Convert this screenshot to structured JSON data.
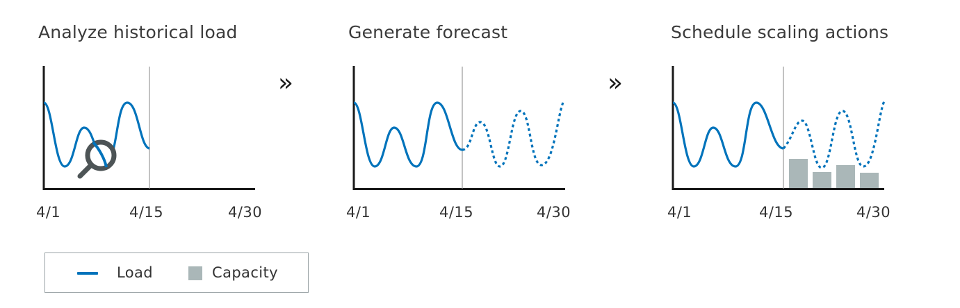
{
  "panels": [
    {
      "title": "Analyze historical load",
      "ticks": [
        "4/1",
        "4/15",
        "4/30"
      ]
    },
    {
      "title": "Generate forecast",
      "ticks": [
        "4/1",
        "4/15",
        "4/30"
      ]
    },
    {
      "title": "Schedule scaling actions",
      "ticks": [
        "4/1",
        "4/15",
        "4/30"
      ]
    }
  ],
  "arrows": [
    "»",
    "»"
  ],
  "legend": {
    "load_label": "Load",
    "capacity_label": "Capacity"
  },
  "colors": {
    "load": "#0073bb",
    "capacity": "#aab7b8",
    "axis": "#1a1a1a",
    "divider": "#9a9a9a",
    "magnifier": "#4d5456"
  },
  "icons": {
    "magnifier": "magnifier-icon"
  }
}
